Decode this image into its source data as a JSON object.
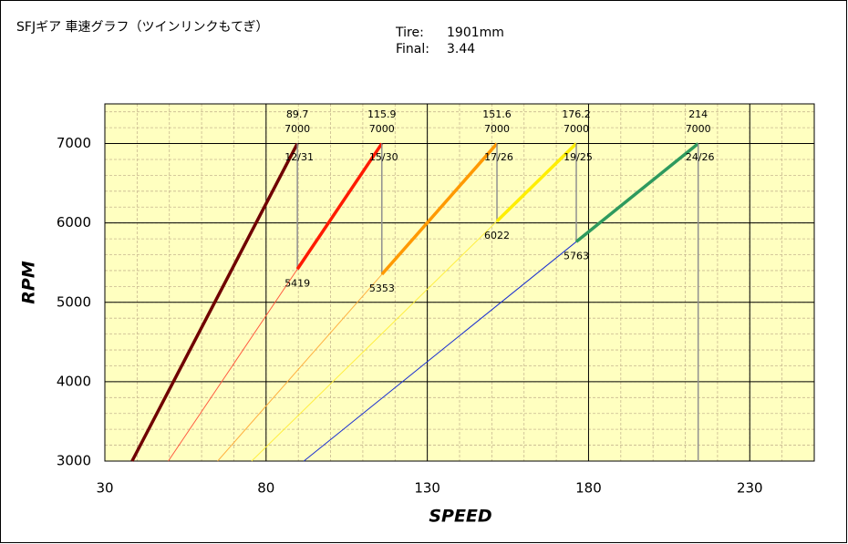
{
  "chart_data": {
    "type": "gear-speed",
    "title": "SFJギア 車速グラフ（ツインリンクもてぎ）",
    "tire_label": "Tire:",
    "tire": "1901mm",
    "final_label": "Final:",
    "final": "3.44",
    "x_label": "SPEED",
    "y_label": "RPM",
    "xlim": [
      30,
      250
    ],
    "xticks": [
      30,
      80,
      130,
      180,
      230
    ],
    "ylim": [
      3000,
      7500
    ],
    "yticks": [
      3000,
      4000,
      5000,
      6000,
      7000
    ],
    "x_minor_step": 10,
    "y_minor_step": 200,
    "grid": true,
    "background": "#ffffc0",
    "series": [
      {
        "name": "12/31",
        "color": "#700000",
        "thin_color": "#700000",
        "speed": 89.7,
        "rpm": 7000
      },
      {
        "name": "15/30",
        "color": "#ff1a00",
        "thin_color": "#ff5a40",
        "speed": 115.9,
        "rpm": 7000,
        "shift_rpm": 5419
      },
      {
        "name": "17/26",
        "color": "#ff9900",
        "thin_color": "#ffb040",
        "speed": 151.6,
        "rpm": 7000,
        "shift_rpm": 5353
      },
      {
        "name": "19/25",
        "color": "#ffee00",
        "thin_color": "#ffee40",
        "speed": 176.2,
        "rpm": 7000,
        "shift_rpm": 6022
      },
      {
        "name": "24/26",
        "color": "#2e9a5e",
        "thin_color": "#1a2fd0",
        "speed": 214.0,
        "rpm": 7000,
        "shift_rpm": 5763
      }
    ]
  }
}
